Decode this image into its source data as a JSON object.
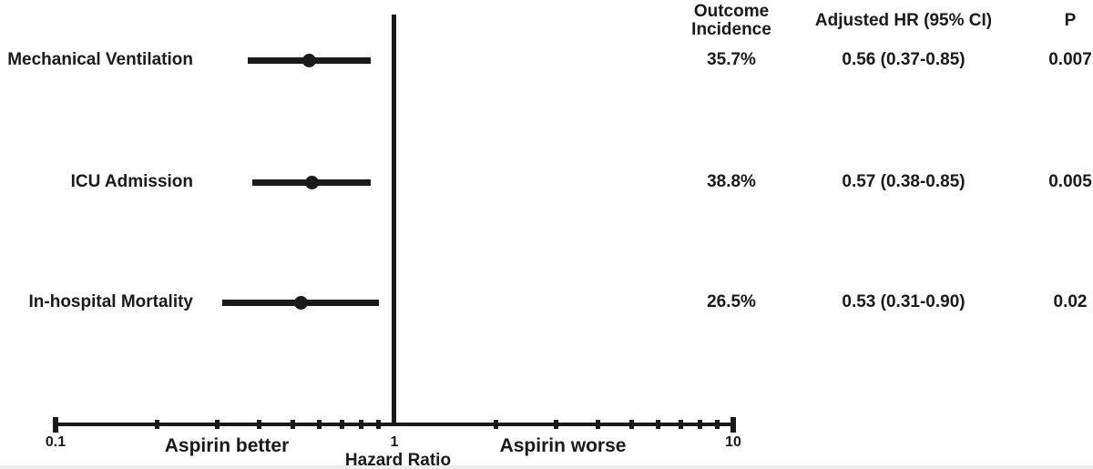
{
  "chart_data": {
    "type": "scatter",
    "variant": "forest-plot",
    "title": "",
    "xlabel": "Hazard Ratio",
    "x_scale": "log",
    "xlim": [
      0.1,
      10
    ],
    "x_ticks": [
      0.1,
      0.2,
      0.3,
      0.4,
      0.5,
      0.6,
      0.7,
      0.8,
      0.9,
      1,
      2,
      3,
      4,
      5,
      6,
      7,
      8,
      9,
      10
    ],
    "shown_tick_labels": [
      {
        "value": 0.1,
        "label": "0.1"
      },
      {
        "value": 1,
        "label": "1"
      },
      {
        "value": 10,
        "label": "10"
      }
    ],
    "reference_line_x": 1,
    "grid": false,
    "column_headers": {
      "incidence_line1": "Outcome",
      "incidence_line2": "Incidence",
      "hr": "Adjusted HR (95% CI)",
      "p": "P"
    },
    "annotations": [
      {
        "text": "Aspirin better",
        "side": "left"
      },
      {
        "text": "Aspirin worse",
        "side": "right"
      }
    ],
    "rows": [
      {
        "label": "Mechanical Ventilation",
        "outcome_incidence": "35.7%",
        "hr": 0.56,
        "ci_low": 0.37,
        "ci_high": 0.85,
        "adjusted_hr_text": "0.56 (0.37-0.85)",
        "p": "0.007"
      },
      {
        "label": "ICU Admission",
        "outcome_incidence": "38.8%",
        "hr": 0.57,
        "ci_low": 0.38,
        "ci_high": 0.85,
        "adjusted_hr_text": "0.57 (0.38-0.85)",
        "p": "0.005"
      },
      {
        "label": "In-hospital Mortality",
        "outcome_incidence": "26.5%",
        "hr": 0.53,
        "ci_low": 0.31,
        "ci_high": 0.9,
        "adjusted_hr_text": "0.53 (0.31-0.90)",
        "p": "0.02"
      }
    ],
    "colors": {
      "foreground": "#1a1a1a",
      "background": "#ffffff"
    }
  }
}
